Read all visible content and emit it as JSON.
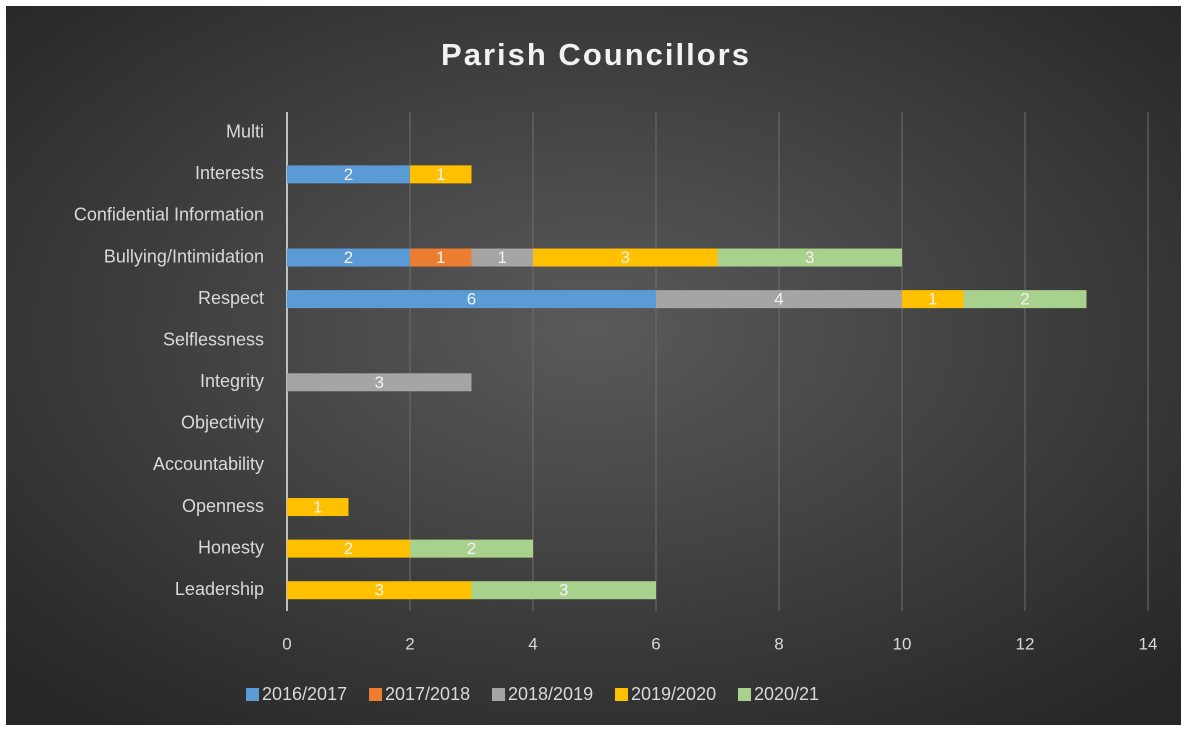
{
  "chart_data": {
    "type": "stacked-barh",
    "title": "Parish Councillors",
    "categories": [
      "Multi",
      "Interests",
      "Confidential Information",
      "Bullying/Intimidation",
      "Respect",
      "Selflessness",
      "Integrity",
      "Objectivity",
      "Accountability",
      "Openness",
      "Honesty",
      "Leadership"
    ],
    "series": [
      {
        "name": "2016/2017",
        "color": "#5b9bd5",
        "values": [
          null,
          2,
          null,
          2,
          6,
          null,
          null,
          null,
          null,
          null,
          null,
          null
        ]
      },
      {
        "name": "2017/2018",
        "color": "#ed7d31",
        "values": [
          null,
          null,
          null,
          1,
          null,
          null,
          null,
          null,
          null,
          null,
          null,
          null
        ]
      },
      {
        "name": "2018/2019",
        "color": "#a5a5a5",
        "values": [
          null,
          null,
          null,
          1,
          4,
          null,
          3,
          null,
          null,
          null,
          null,
          null
        ]
      },
      {
        "name": "2019/2020",
        "color": "#ffc000",
        "values": [
          null,
          1,
          null,
          3,
          1,
          null,
          null,
          null,
          null,
          1,
          2,
          3
        ]
      },
      {
        "name": "2020/21",
        "color": "#a9d18e",
        "values": [
          null,
          null,
          null,
          3,
          2,
          null,
          null,
          null,
          null,
          null,
          2,
          3
        ]
      }
    ],
    "xlim": [
      0,
      14
    ],
    "xticks": [
      0,
      2,
      4,
      6,
      8,
      10,
      12,
      14
    ],
    "grid": true,
    "legend": "bottom"
  }
}
